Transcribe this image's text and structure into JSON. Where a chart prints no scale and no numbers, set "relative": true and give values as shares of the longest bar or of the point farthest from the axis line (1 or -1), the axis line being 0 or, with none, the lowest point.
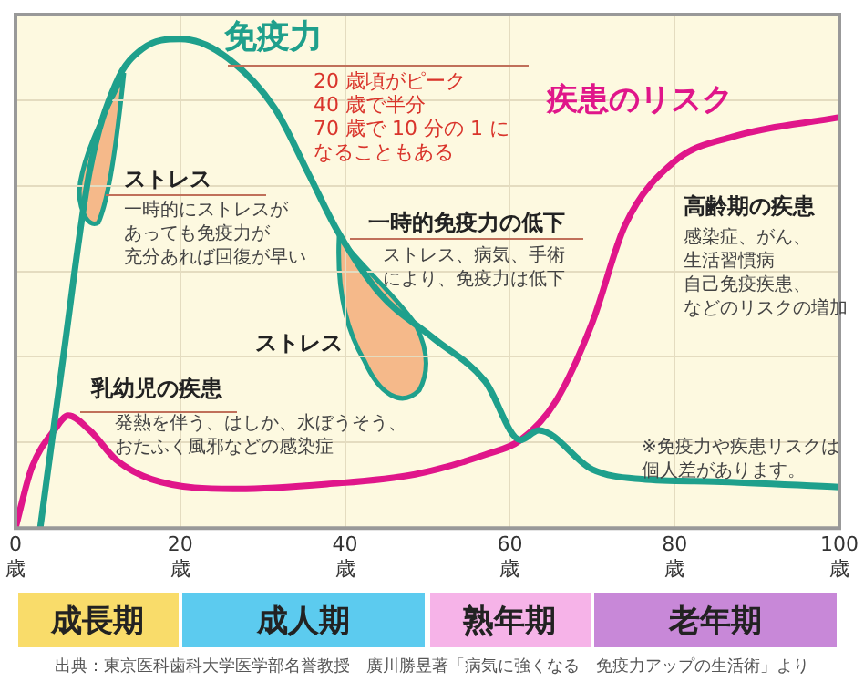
{
  "chart_data": {
    "type": "line",
    "relative": true,
    "grid": true,
    "legend": false,
    "marker": "none",
    "line_style": "solid",
    "x": [
      3,
      5.8,
      9,
      12.2,
      15.4,
      20,
      25,
      31.4,
      35.7,
      39,
      44.2,
      50.6,
      57,
      61.3,
      63.5,
      70,
      76,
      84.8,
      100
    ],
    "xlim": [
      0,
      100
    ],
    "xticks": [
      {
        "value": 0,
        "label": "0\n歳"
      },
      {
        "value": 20,
        "label": "20\n歳"
      },
      {
        "value": 40,
        "label": "40\n歳"
      },
      {
        "value": 60,
        "label": "60\n歳"
      },
      {
        "value": 80,
        "label": "80\n歳"
      },
      {
        "value": 100,
        "label": "100\n歳"
      }
    ],
    "series": [
      {
        "name": "免疫力",
        "color": "#1fa08c",
        "values": [
          0,
          0.35,
          0.73,
          0.91,
          0.98,
          1,
          0.97,
          0.86,
          0.72,
          0.61,
          0.48,
          0.39,
          0.3,
          0.18,
          0.2,
          0.12,
          0.1,
          0.095,
          0.084
        ]
      },
      {
        "name": "疾患のリスク",
        "color": "#e0168a",
        "x": [
          0,
          1.9,
          4.7,
          6.4,
          9,
          12.2,
          16.5,
          27,
          37.8,
          48.5,
          57,
          61.3,
          65.6,
          70,
          74,
          80,
          87,
          100
        ],
        "values": [
          0,
          0.12,
          0.2,
          0.23,
          0.2,
          0.14,
          0.1,
          0.08,
          0.09,
          0.11,
          0.15,
          0.18,
          0.26,
          0.42,
          0.62,
          0.75,
          0.8,
          0.84
        ]
      }
    ],
    "annotations": [
      "20 歳頃がピーク\n40 歳で半分\n70 歳で 10 分の 1 になることもある",
      "ストレス",
      "一時的にストレスがあっても免疫力が充分あれば回復が早い",
      "一時的免疫力の低下",
      "ストレス、病気、手術により、免疫力は低下",
      "ストレス",
      "乳幼児の疾患",
      "発熱を伴う、はしか、水ぼうそう、おたふく風邪などの感染症",
      "高齢期の疾患",
      "感染症、がん、生活習慣病自己免疫疾患、などのリスクの増加",
      "※免疫力や疾患リスクは個人差があります。",
      "成長期",
      "成人期",
      "熟年期",
      "老年期",
      "出典：東京医科歯科大学医学部名誉教授　廣川勝昱著「病気に強くなる　免疫力アップの生活術」より"
    ]
  }
}
